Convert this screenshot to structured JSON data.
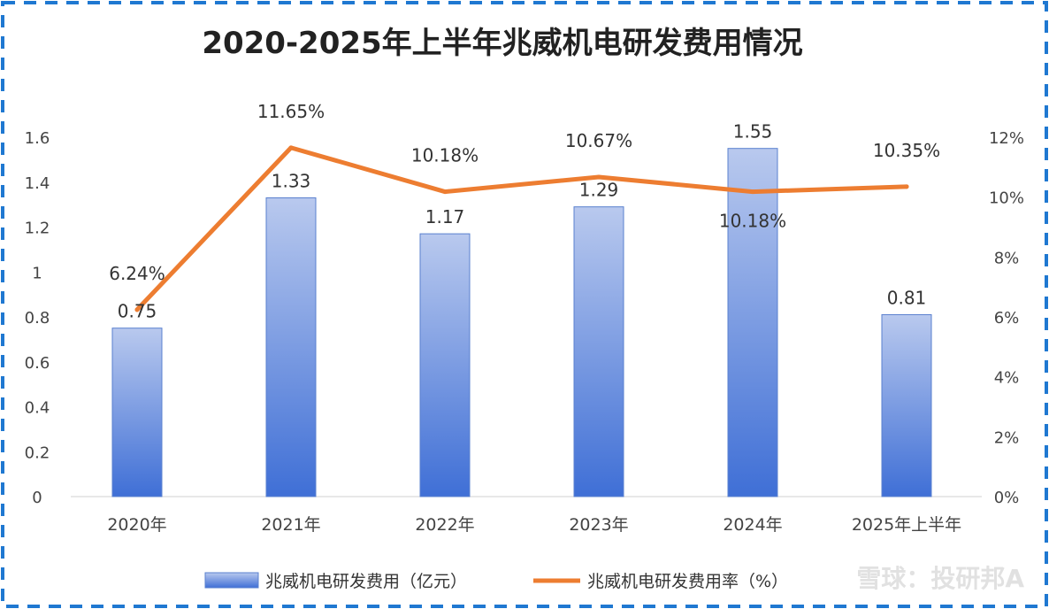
{
  "chart_data": {
    "type": "bar",
    "title": "2020-2025年上半年兆威机电研发费用情况",
    "categories": [
      "2020年",
      "2021年",
      "2022年",
      "2023年",
      "2024年",
      "2025年上半年"
    ],
    "series": [
      {
        "name": "兆威机电研发费用（亿元）",
        "type": "bar",
        "axis": "left",
        "values": [
          0.75,
          1.33,
          1.17,
          1.29,
          1.55,
          0.81
        ],
        "labels": [
          "0.75",
          "1.33",
          "1.17",
          "1.29",
          "1.55",
          "0.81"
        ],
        "color": "#4472c4"
      },
      {
        "name": "兆威机电研发费用率（%）",
        "type": "line",
        "axis": "right",
        "values": [
          6.24,
          11.65,
          10.18,
          10.67,
          10.18,
          10.35
        ],
        "labels": [
          "6.24%",
          "11.65%",
          "10.18%",
          "10.67%",
          "10.18%",
          "10.35%"
        ],
        "color": "#ed7d31"
      }
    ],
    "y_left": {
      "lim": [
        0,
        1.6
      ],
      "ticks": [
        "0",
        "0.2",
        "0.4",
        "0.6",
        "0.8",
        "1",
        "1.2",
        "1.4",
        "1.6"
      ]
    },
    "y_right": {
      "lim": [
        0,
        12
      ],
      "ticks": [
        "0%",
        "2%",
        "4%",
        "6%",
        "8%",
        "10%",
        "12%"
      ]
    },
    "grid": false,
    "legend": "bottom"
  },
  "watermark": "雪球：投研邦A",
  "colors": {
    "frame_dash": "#1f78d1",
    "bar_top": "#b9c9ee",
    "bar_bottom": "#3f6fd6",
    "line": "#ed7d31"
  }
}
